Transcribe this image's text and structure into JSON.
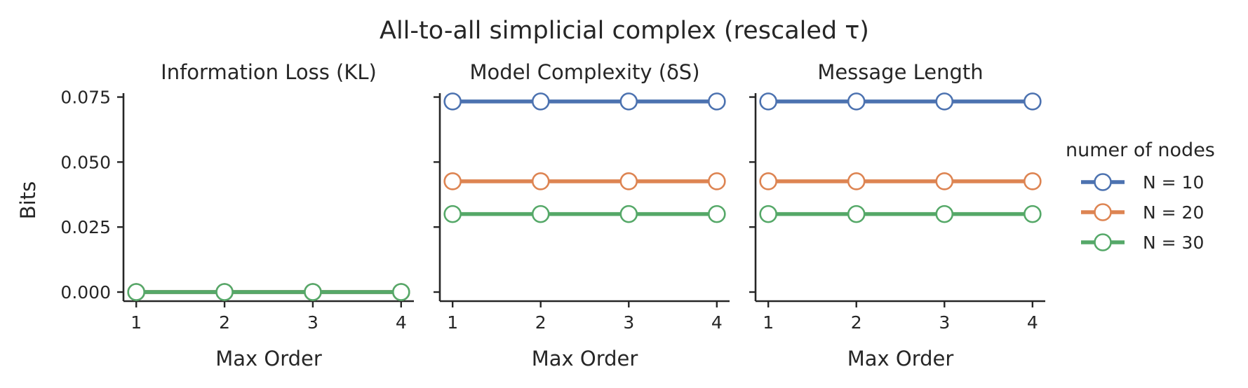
{
  "figure": {
    "suptitle": "All-to-all simplicial complex (rescaled τ)",
    "ylabel": "Bits"
  },
  "legend": {
    "title": "numer of nodes",
    "placement": "right"
  },
  "colors": {
    "N = 10": "#4c72b0",
    "N = 20": "#dd8452",
    "N = 30": "#55a868"
  },
  "chart_data": [
    {
      "type": "line",
      "title": "Information Loss (KL)",
      "xlabel": "Max Order",
      "ylabel": "Bits",
      "x": [
        1,
        2,
        3,
        4
      ],
      "ylim": [
        -0.0035,
        0.0765
      ],
      "yticks": [
        0.0,
        0.025,
        0.05,
        0.075
      ],
      "ytick_labels": [
        "0.000",
        "0.025",
        "0.050",
        "0.075"
      ],
      "series": [
        {
          "name": "N = 10",
          "values": [
            0.0,
            0.0,
            0.0,
            0.0
          ]
        },
        {
          "name": "N = 20",
          "values": [
            0.0,
            0.0,
            0.0,
            0.0
          ]
        },
        {
          "name": "N = 30",
          "values": [
            0.0,
            0.0,
            0.0,
            0.0
          ]
        }
      ],
      "grid": false
    },
    {
      "type": "line",
      "title": "Model Complexity (δS)",
      "xlabel": "Max Order",
      "x": [
        1,
        2,
        3,
        4
      ],
      "ylim": [
        -0.0035,
        0.0765
      ],
      "yticks": [
        0.0,
        0.025,
        0.05,
        0.075
      ],
      "series": [
        {
          "name": "N = 10",
          "values": [
            0.0733,
            0.0733,
            0.0733,
            0.0733
          ]
        },
        {
          "name": "N = 20",
          "values": [
            0.0426,
            0.0426,
            0.0426,
            0.0426
          ]
        },
        {
          "name": "N = 30",
          "values": [
            0.03,
            0.03,
            0.03,
            0.03
          ]
        }
      ],
      "grid": false
    },
    {
      "type": "line",
      "title": "Message Length",
      "xlabel": "Max Order",
      "x": [
        1,
        2,
        3,
        4
      ],
      "ylim": [
        -0.0035,
        0.0765
      ],
      "yticks": [
        0.0,
        0.025,
        0.05,
        0.075
      ],
      "series": [
        {
          "name": "N = 10",
          "values": [
            0.0733,
            0.0733,
            0.0733,
            0.0733
          ]
        },
        {
          "name": "N = 20",
          "values": [
            0.0426,
            0.0426,
            0.0426,
            0.0426
          ]
        },
        {
          "name": "N = 30",
          "values": [
            0.03,
            0.03,
            0.03,
            0.03
          ]
        }
      ],
      "grid": false
    }
  ]
}
